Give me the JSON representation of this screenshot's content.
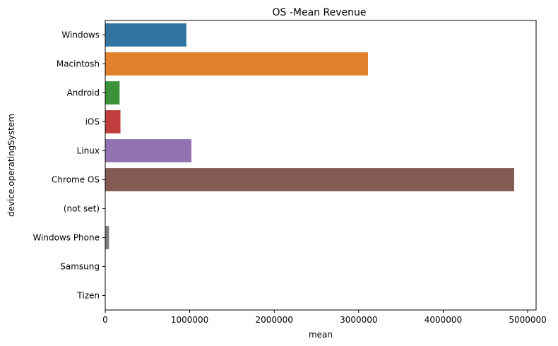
{
  "chart_data": {
    "type": "bar",
    "orientation": "horizontal",
    "title": "OS -Mean Revenue",
    "xlabel": "mean",
    "ylabel": "device.operatingSystem",
    "categories": [
      "Windows",
      "Macintosh",
      "Android",
      "iOS",
      "Linux",
      "Chrome OS",
      "(not set)",
      "Windows Phone",
      "Samsung",
      "Tizen"
    ],
    "values": [
      960000,
      3110000,
      170000,
      180000,
      1020000,
      4840000,
      0,
      45000,
      0,
      0
    ],
    "colors": [
      "#3274a1",
      "#e1812c",
      "#3a923a",
      "#c03d3e",
      "#9372b2",
      "#845b53",
      "#d684bd",
      "#7f7f7f",
      "#a9aa35",
      "#2eb0bd"
    ],
    "xlim": [
      0,
      5100000
    ],
    "xticks": [
      0,
      1000000,
      2000000,
      3000000,
      4000000,
      5000000
    ],
    "xtick_labels": [
      "0",
      "1000000",
      "2000000",
      "3000000",
      "4000000",
      "5000000"
    ],
    "grid": false,
    "legend": "none"
  }
}
